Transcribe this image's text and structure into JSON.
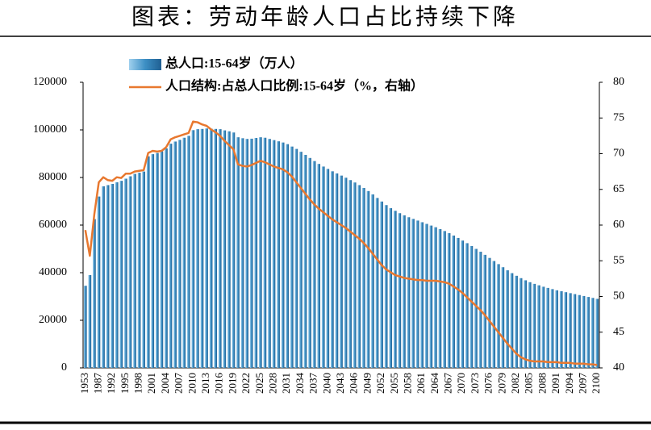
{
  "chart_data": {
    "type": "bar-line",
    "title": "图表：劳动年龄人口占比持续下降",
    "categories": [
      "1953",
      null,
      null,
      "1987",
      null,
      null,
      "1992",
      null,
      null,
      "1995",
      null,
      null,
      "1998",
      null,
      null,
      "2001",
      null,
      null,
      "2004",
      null,
      null,
      "2007",
      null,
      null,
      "2010",
      null,
      null,
      "2013",
      null,
      null,
      "2016",
      null,
      null,
      "2019",
      null,
      null,
      "2022",
      null,
      null,
      "2025",
      null,
      null,
      "2028",
      null,
      null,
      "2031",
      null,
      null,
      "2034",
      null,
      null,
      "2037",
      null,
      null,
      "2040",
      null,
      null,
      "2043",
      null,
      null,
      "2046",
      null,
      null,
      "2049",
      null,
      null,
      "2052",
      null,
      null,
      "2055",
      null,
      null,
      "2058",
      null,
      null,
      "2061",
      null,
      null,
      "2064",
      null,
      null,
      "2067",
      null,
      null,
      "2070",
      null,
      null,
      "2073",
      null,
      null,
      "2076",
      null,
      null,
      "2079",
      null,
      null,
      "2082",
      null,
      null,
      "2085",
      null,
      null,
      "2088",
      null,
      null,
      "2091",
      null,
      null,
      "2094",
      null,
      null,
      "2097",
      null,
      null,
      "2100"
    ],
    "series": [
      {
        "name": "总人口:15-64岁（万人）",
        "type": "bar",
        "color": "#3d8fc4",
        "values": [
          34500,
          39000,
          62500,
          72000,
          76300,
          76800,
          77300,
          78000,
          78600,
          79500,
          80500,
          81500,
          82000,
          82500,
          88900,
          89800,
          90300,
          91000,
          92200,
          94200,
          95100,
          95800,
          96700,
          97500,
          99900,
          100300,
          100400,
          100600,
          100500,
          100400,
          100300,
          99800,
          99400,
          98900,
          96900,
          96500,
          96200,
          96300,
          96600,
          96900,
          96700,
          96200,
          95700,
          95200,
          94700,
          94000,
          93000,
          92000,
          90800,
          89500,
          88200,
          86900,
          85700,
          84600,
          83600,
          82600,
          81700,
          80800,
          79900,
          78900,
          77900,
          76800,
          75600,
          74300,
          72900,
          71400,
          69900,
          68400,
          67100,
          66000,
          65000,
          64100,
          63300,
          62600,
          61900,
          61200,
          60500,
          59800,
          59100,
          58300,
          57500,
          56600,
          55600,
          54600,
          53500,
          52400,
          51200,
          50000,
          48800,
          47500,
          46200,
          44900,
          43600,
          42300,
          41000,
          39800,
          38700,
          37700,
          36800,
          36000,
          35300,
          34700,
          34100,
          33600,
          33100,
          32600,
          32200,
          31800,
          31400,
          31000,
          30600,
          30200,
          29800,
          29400,
          29000
        ]
      },
      {
        "name": "人口结构:占总人口比例:15-64岁（%，右轴）",
        "type": "line",
        "axis": "y2",
        "color": "#e8782f",
        "values": [
          59.3,
          55.7,
          61.5,
          66.0,
          66.7,
          66.3,
          66.2,
          66.7,
          66.6,
          67.2,
          67.2,
          67.5,
          67.6,
          67.7,
          70.1,
          70.4,
          70.3,
          70.4,
          70.9,
          72.0,
          72.3,
          72.5,
          72.7,
          72.9,
          74.5,
          74.4,
          74.1,
          73.9,
          73.4,
          73.0,
          72.5,
          71.8,
          71.2,
          70.6,
          68.5,
          68.3,
          68.2,
          68.4,
          68.7,
          69.0,
          68.8,
          68.5,
          68.2,
          68.0,
          67.8,
          67.4,
          66.8,
          66.0,
          65.2,
          64.4,
          63.6,
          62.9,
          62.3,
          61.8,
          61.3,
          60.8,
          60.4,
          60.0,
          59.6,
          59.1,
          58.6,
          58.1,
          57.5,
          56.8,
          56.0,
          55.2,
          54.4,
          53.8,
          53.4,
          53.0,
          52.8,
          52.6,
          52.5,
          52.4,
          52.3,
          52.3,
          52.2,
          52.2,
          52.2,
          52.1,
          52.0,
          51.8,
          51.4,
          51.0,
          50.5,
          49.9,
          49.3,
          48.7,
          48.1,
          47.4,
          46.6,
          45.8,
          45.0,
          44.2,
          43.4,
          42.7,
          42.0,
          41.5,
          41.2,
          41.0,
          40.9,
          40.9,
          40.9,
          40.8,
          40.8,
          40.8,
          40.7,
          40.7,
          40.7,
          40.6,
          40.6,
          40.6,
          40.5,
          40.5,
          40.4
        ]
      }
    ],
    "ylim": [
      0,
      120000
    ],
    "yticks": [
      0,
      20000,
      40000,
      60000,
      80000,
      100000,
      120000
    ],
    "y2lim": [
      40,
      80
    ],
    "y2ticks": [
      40,
      45,
      50,
      55,
      60,
      65,
      70,
      75,
      80
    ],
    "grid": false
  }
}
